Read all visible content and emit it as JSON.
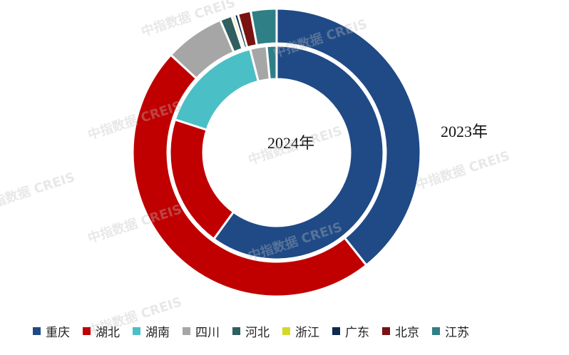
{
  "chart_data": {
    "type": "pie",
    "subtype": "nested-donut",
    "categories": [
      "重庆",
      "湖北",
      "湖南",
      "四川",
      "河北",
      "浙江",
      "广东",
      "北京",
      "江苏"
    ],
    "colors": [
      "#1F4A86",
      "#C00000",
      "#4BBFC6",
      "#A6A6A6",
      "#2F5F5F",
      "#D4D82A",
      "#0E2A4F",
      "#7A1212",
      "#2F7F86"
    ],
    "series": [
      {
        "name": "2023年",
        "ring": "outer",
        "values": [
          38.0,
          46.0,
          0.0,
          6.5,
          1.3,
          0.3,
          0.4,
          1.4,
          2.8
        ]
      },
      {
        "name": "2024年",
        "ring": "inner",
        "values": [
          60.0,
          20.0,
          16.0,
          2.5,
          0.0,
          0.0,
          0.0,
          0.0,
          1.5
        ]
      }
    ],
    "legend_position": "bottom"
  },
  "labels": {
    "outer": "2023年",
    "inner": "2024年"
  },
  "watermark": "中指数据 CREIS"
}
